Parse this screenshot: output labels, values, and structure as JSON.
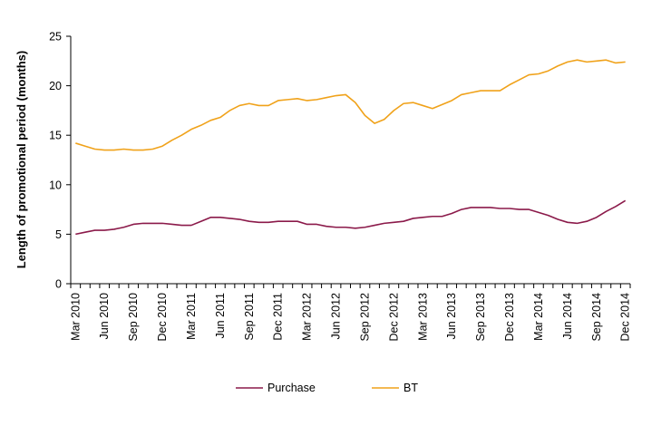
{
  "chart_data": {
    "type": "line",
    "ylabel": "Length of promotional period (months)",
    "xlabel": "",
    "ylim": [
      0,
      25
    ],
    "yticks": [
      "0",
      "5",
      "10",
      "15",
      "20",
      "25"
    ],
    "x_tick_labels": [
      "Mar 2010",
      "Jun 2010",
      "Sep 2010",
      "Dec 2010",
      "Mar 2011",
      "Jun 2011",
      "Sep 2011",
      "Dec 2011",
      "Mar 2012",
      "Jun 2012",
      "Sep 2012",
      "Dec 2012",
      "Mar 2013",
      "Jun 2013",
      "Sep 2013",
      "Dec 2013",
      "Mar 2014",
      "Jun 2014",
      "Sep 2014",
      "Dec 2014"
    ],
    "x": [
      "Mar 2010",
      "Apr 2010",
      "May 2010",
      "Jun 2010",
      "Jul 2010",
      "Aug 2010",
      "Sep 2010",
      "Oct 2010",
      "Nov 2010",
      "Dec 2010",
      "Jan 2011",
      "Feb 2011",
      "Mar 2011",
      "Apr 2011",
      "May 2011",
      "Jun 2011",
      "Jul 2011",
      "Aug 2011",
      "Sep 2011",
      "Oct 2011",
      "Nov 2011",
      "Dec 2011",
      "Jan 2012",
      "Feb 2012",
      "Mar 2012",
      "Apr 2012",
      "May 2012",
      "Jun 2012",
      "Jul 2012",
      "Aug 2012",
      "Sep 2012",
      "Oct 2012",
      "Nov 2012",
      "Dec 2012",
      "Jan 2013",
      "Feb 2013",
      "Mar 2013",
      "Apr 2013",
      "May 2013",
      "Jun 2013",
      "Jul 2013",
      "Aug 2013",
      "Sep 2013",
      "Oct 2013",
      "Nov 2013",
      "Dec 2013",
      "Jan 2014",
      "Feb 2014",
      "Mar 2014",
      "Apr 2014",
      "May 2014",
      "Jun 2014",
      "Jul 2014",
      "Aug 2014",
      "Sep 2014",
      "Oct 2014",
      "Nov 2014",
      "Dec 2014"
    ],
    "series": [
      {
        "name": "Purchase",
        "color": "#8b1a4a",
        "values": [
          5.0,
          5.2,
          5.4,
          5.4,
          5.5,
          5.7,
          6.0,
          6.1,
          6.1,
          6.1,
          6.0,
          5.9,
          5.9,
          6.3,
          6.7,
          6.7,
          6.6,
          6.5,
          6.3,
          6.2,
          6.2,
          6.3,
          6.3,
          6.3,
          6.0,
          6.0,
          5.8,
          5.7,
          5.7,
          5.6,
          5.7,
          5.9,
          6.1,
          6.2,
          6.3,
          6.6,
          6.7,
          6.8,
          6.8,
          7.1,
          7.5,
          7.7,
          7.7,
          7.7,
          7.6,
          7.6,
          7.5,
          7.5,
          7.2,
          6.9,
          6.5,
          6.2,
          6.1,
          6.3,
          6.7,
          7.3,
          7.8,
          8.4
        ]
      },
      {
        "name": "BT",
        "color": "#f0a21a",
        "values": [
          14.2,
          13.9,
          13.6,
          13.5,
          13.5,
          13.6,
          13.5,
          13.5,
          13.6,
          13.9,
          14.5,
          15.0,
          15.6,
          16.0,
          16.5,
          16.8,
          17.5,
          18.0,
          18.2,
          18.0,
          18.0,
          18.5,
          18.6,
          18.7,
          18.5,
          18.6,
          18.8,
          19.0,
          19.1,
          18.3,
          17.0,
          16.2,
          16.6,
          17.5,
          18.2,
          18.3,
          18.0,
          17.7,
          18.1,
          18.5,
          19.1,
          19.3,
          19.5,
          19.5,
          19.5,
          20.1,
          20.6,
          21.1,
          21.2,
          21.5,
          22.0,
          22.4,
          22.6,
          22.4,
          22.5,
          22.6,
          22.3,
          22.4
        ]
      }
    ],
    "legend": {
      "position": "bottom",
      "items": [
        "Purchase",
        "BT"
      ]
    },
    "grid": false
  }
}
